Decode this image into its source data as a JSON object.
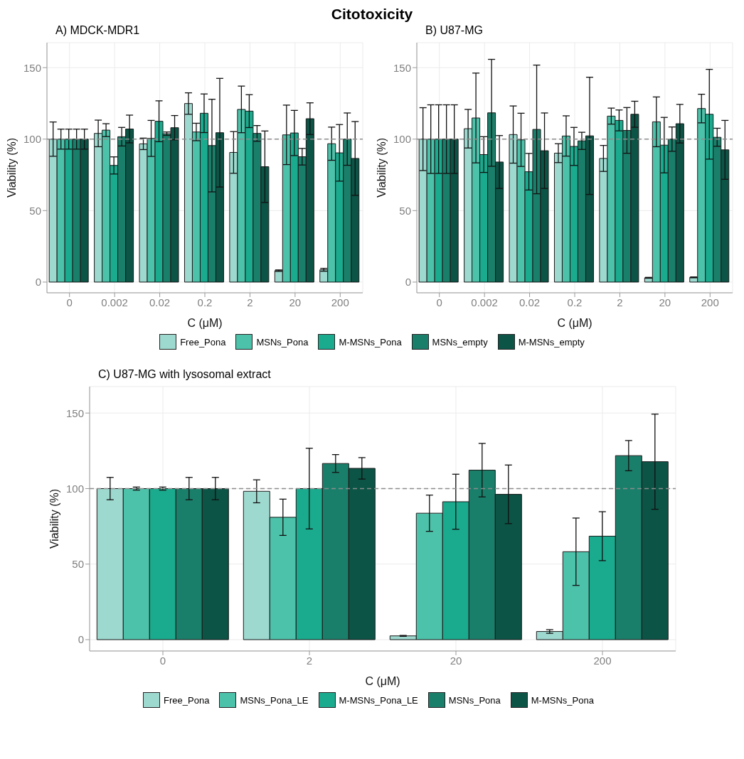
{
  "chart_data": [
    {
      "type": "bar",
      "title": "Citotoxicity",
      "subtitle": "A) MDCK-MDR1",
      "xlabel": "C (μM)",
      "ylabel": "Viability (%)",
      "categories": [
        "0",
        "0.002",
        "0.02",
        "0.2",
        "2",
        "20",
        "200"
      ],
      "series": [
        {
          "name": "Free_Pona",
          "color": "#9dd9cf",
          "values": [
            100,
            104,
            96.7,
            124.9,
            90.7,
            8,
            8.6
          ],
          "errors": [
            12,
            9.3,
            4,
            7.5,
            14.6,
            0.5,
            1
          ]
        },
        {
          "name": "MSNs_Pona",
          "color": "#4dc2aa",
          "values": [
            100,
            106.3,
            100.5,
            105,
            120.8,
            103,
            96.8
          ],
          "errors": [
            7,
            4.5,
            12.6,
            6.1,
            16.3,
            20.8,
            11.6
          ]
        },
        {
          "name": "M-MSNs_Pona",
          "color": "#1aab8e",
          "values": [
            100,
            81.6,
            112.5,
            118.1,
            119.6,
            104.3,
            90.4
          ],
          "errors": [
            7,
            6,
            14.3,
            13.5,
            11.5,
            15.8,
            19.8
          ]
        },
        {
          "name": "MSNs_empty",
          "color": "#1a7f6a",
          "values": [
            100,
            101.7,
            103.8,
            95.5,
            104,
            87.7,
            100
          ],
          "errors": [
            7,
            6.5,
            1.2,
            32.4,
            5.5,
            5.8,
            18.3
          ]
        },
        {
          "name": "M-MSNs_empty",
          "color": "#0b5446",
          "values": [
            100,
            107.1,
            108,
            104.5,
            80.7,
            114.3,
            86.5
          ],
          "errors": [
            7,
            9.7,
            8.5,
            38,
            25,
            11.1,
            25.8
          ]
        }
      ],
      "ylim": [
        -7.5,
        167.5
      ],
      "yticks": [
        0,
        50,
        100,
        150
      ],
      "grid": true,
      "legend": "bottom",
      "ref_lines": [
        {
          "axis": "y",
          "value": 100,
          "line_style": "dashed",
          "color": "#8c8c8c"
        }
      ]
    },
    {
      "type": "bar",
      "subtitle": "B) U87-MG",
      "xlabel": "C (μM)",
      "ylabel": "Viability (%)",
      "categories": [
        "0",
        "0.002",
        "0.02",
        "0.2",
        "2",
        "20",
        "200"
      ],
      "series": [
        {
          "color": "#9dd9cf",
          "values": [
            100,
            107.3,
            103.2,
            90.2,
            86.5,
            3,
            3.3
          ],
          "errors": [
            22,
            13.5,
            20,
            6.6,
            9.1,
            0.3,
            0.3
          ]
        },
        {
          "color": "#4dc2aa",
          "values": [
            100,
            114.8,
            99.5,
            102.2,
            116.1,
            112.1,
            121.4
          ],
          "errors": [
            24,
            31.4,
            18.6,
            14.1,
            5.6,
            17.4,
            10
          ]
        },
        {
          "color": "#1aab8e",
          "values": [
            100,
            89.2,
            77.2,
            94.9,
            113.1,
            95.8,
            117.4
          ],
          "errors": [
            24,
            12.5,
            12.8,
            13.3,
            7.3,
            19.4,
            31.4
          ]
        },
        {
          "color": "#1a7f6a",
          "values": [
            100,
            118.4,
            106.8,
            98.8,
            106.1,
            100,
            101.3
          ],
          "errors": [
            24,
            37.4,
            45,
            6,
            16,
            8.5,
            6.3
          ]
        },
        {
          "color": "#0b5446",
          "values": [
            100,
            84,
            91.9,
            102.3,
            117.4,
            110.8,
            92.5
          ],
          "errors": [
            24,
            18.5,
            26.4,
            41,
            9.1,
            13.5,
            20.6
          ]
        }
      ],
      "ylim": [
        -7.5,
        167.5
      ],
      "yticks": [
        0,
        50,
        100,
        150
      ],
      "grid": true,
      "ref_lines": [
        {
          "axis": "y",
          "value": 100,
          "line_style": "dashed",
          "color": "#8c8c8c"
        }
      ]
    },
    {
      "type": "bar",
      "subtitle": "C) U87-MG with lysosomal extract",
      "xlabel": "C (μM)",
      "ylabel": "Viability (%)",
      "categories": [
        "0",
        "2",
        "20",
        "200"
      ],
      "series": [
        {
          "name": "Free_Pona",
          "color": "#9dd9cf",
          "values": [
            100,
            98.2,
            2.5,
            5.4
          ],
          "errors": [
            7.4,
            7.6,
            0.3,
            1.2
          ]
        },
        {
          "name": "MSNs_Pona_LE",
          "color": "#4dc2aa",
          "values": [
            100,
            81,
            83.7,
            58.2
          ],
          "errors": [
            1,
            12,
            12,
            22.3
          ]
        },
        {
          "name": "M-MSNs_Pona_LE",
          "color": "#1aab8e",
          "values": [
            100,
            100,
            91.3,
            68.5
          ],
          "errors": [
            1,
            26.7,
            18.2,
            16.2
          ]
        },
        {
          "name": "MSNs_Pona",
          "color": "#1a7f6a",
          "values": [
            100,
            116.6,
            112.2,
            121.8
          ],
          "errors": [
            7.4,
            5.9,
            17.7,
            10
          ]
        },
        {
          "name": "M-MSNs_Pona",
          "color": "#0b5446",
          "values": [
            100,
            113.4,
            96.2,
            117.8
          ],
          "errors": [
            7.4,
            7.1,
            19.4,
            31.5
          ]
        }
      ],
      "ylim": [
        -7.5,
        167.5
      ],
      "yticks": [
        0,
        50,
        100,
        150
      ],
      "grid": true,
      "legend": "bottom",
      "ref_lines": [
        {
          "axis": "y",
          "value": 100,
          "line_style": "dashed",
          "color": "#8c8c8c"
        }
      ]
    }
  ]
}
